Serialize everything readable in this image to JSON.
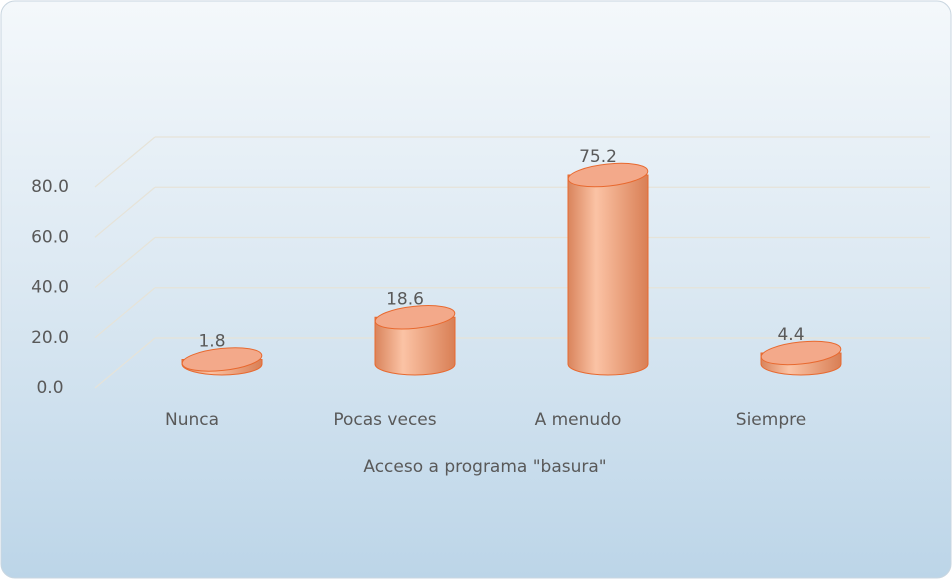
{
  "chart_data": {
    "type": "cylinder",
    "x_label": "Acceso a programa \"basura\"",
    "categories": [
      "Nunca",
      "Pocas veces",
      "A menudo",
      "Siempre"
    ],
    "values": [
      1.8,
      18.6,
      75.2,
      4.4
    ],
    "color": "#f0a07a",
    "ylim": [
      0,
      80
    ],
    "yticks": [
      {
        "value": 0,
        "label": "0.0"
      },
      {
        "value": 20,
        "label": "20.0"
      },
      {
        "value": 40,
        "label": "40.0"
      },
      {
        "value": 60,
        "label": "60.0"
      },
      {
        "value": 80,
        "label": "80.0"
      }
    ],
    "grid": true
  }
}
